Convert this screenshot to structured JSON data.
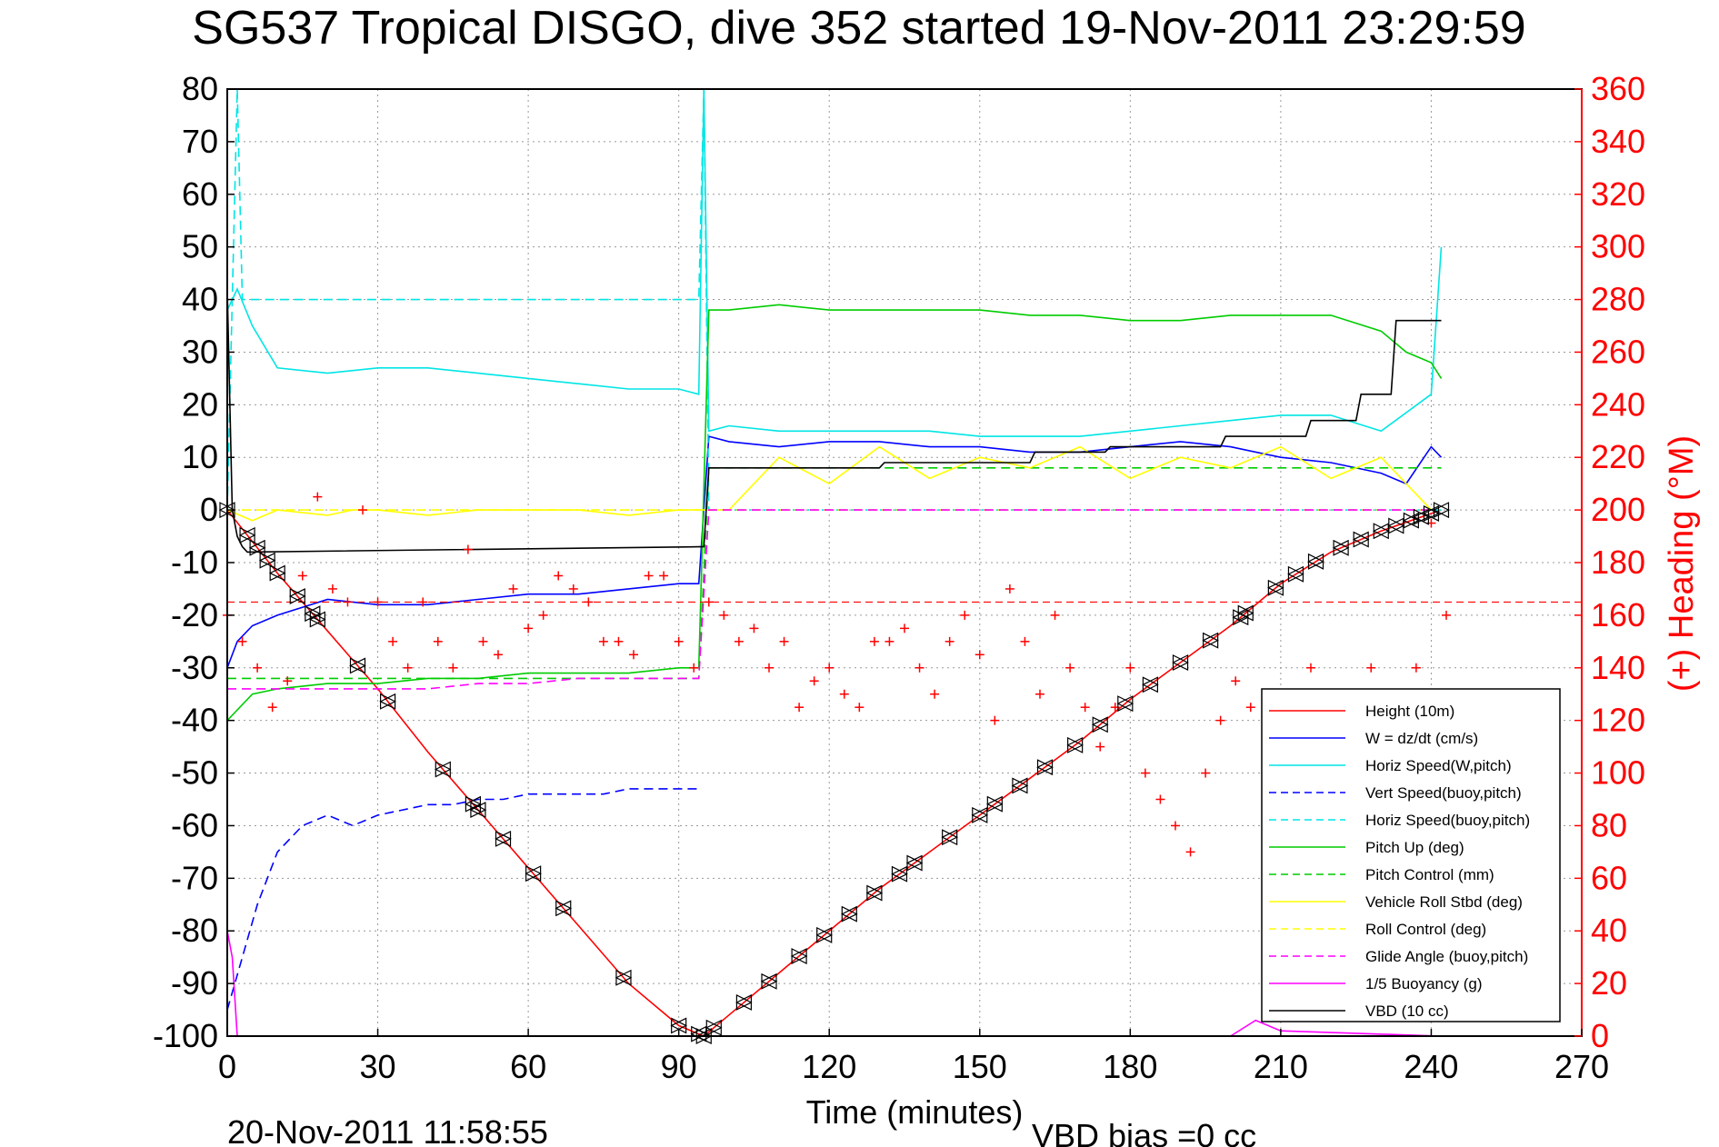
{
  "chart_data": {
    "type": "line",
    "title": "SG537 Tropical DISGO, dive 352 started 19-Nov-2011 23:29:59",
    "xlabel": "Time (minutes)",
    "ylabel_right": "(+) Heading (°M)",
    "footer_date": "20-Nov-2011 11:58:55",
    "footer_note": "VBD bias =0 cc",
    "xlim": [
      0,
      270
    ],
    "ylim": [
      -100,
      80
    ],
    "ylim_right": [
      0,
      360
    ],
    "xticks": [
      0,
      30,
      60,
      90,
      120,
      150,
      180,
      210,
      240,
      270
    ],
    "yticks": [
      80,
      70,
      60,
      50,
      40,
      30,
      20,
      10,
      0,
      -10,
      -20,
      -30,
      -40,
      -50,
      -60,
      -70,
      -80,
      -90,
      -100
    ],
    "yticks_right": [
      360,
      340,
      320,
      300,
      280,
      260,
      240,
      220,
      200,
      180,
      160,
      140,
      120,
      100,
      80,
      60,
      40,
      20,
      0
    ],
    "grid": true,
    "legend_position": "bottom-right",
    "right_axis_color": "#ff0000",
    "series": [
      {
        "name": "Height (10m)",
        "color": "#ff0000",
        "dash": "solid",
        "x": [
          0,
          10,
          20,
          30,
          40,
          50,
          60,
          70,
          80,
          90,
          95,
          100,
          110,
          120,
          130,
          140,
          150,
          160,
          170,
          180,
          190,
          200,
          210,
          220,
          230,
          242
        ],
        "y": [
          0,
          -12,
          -23,
          -34,
          -46,
          -57,
          -68,
          -79,
          -90,
          -98,
          -100,
          -96,
          -88,
          -80,
          -72,
          -65,
          -58,
          -51,
          -44,
          -36,
          -29,
          -22,
          -14,
          -8,
          -4,
          0
        ]
      },
      {
        "name": "W = dz/dt (cm/s)",
        "color": "#0000ff",
        "dash": "solid",
        "x": [
          0,
          2,
          5,
          10,
          20,
          30,
          40,
          50,
          60,
          70,
          80,
          90,
          94,
          96,
          100,
          110,
          120,
          130,
          140,
          150,
          160,
          170,
          180,
          190,
          200,
          210,
          220,
          230,
          235,
          240,
          242
        ],
        "y": [
          -30,
          -25,
          -22,
          -20,
          -17,
          -18,
          -18,
          -17,
          -16,
          -16,
          -15,
          -14,
          -14,
          14,
          13,
          12,
          13,
          13,
          12,
          12,
          11,
          11,
          12,
          13,
          12,
          10,
          9,
          7,
          5,
          12,
          10
        ]
      },
      {
        "name": "Horiz Speed(W,pitch)",
        "color": "#00e5e5",
        "dash": "solid",
        "x": [
          0,
          2,
          5,
          10,
          20,
          30,
          40,
          50,
          60,
          70,
          80,
          90,
          94,
          95,
          96,
          100,
          110,
          120,
          130,
          140,
          150,
          160,
          170,
          180,
          190,
          200,
          210,
          220,
          230,
          240,
          242
        ],
        "y": [
          38,
          42,
          35,
          27,
          26,
          27,
          27,
          26,
          25,
          24,
          23,
          23,
          22,
          80,
          15,
          16,
          15,
          15,
          15,
          15,
          14,
          14,
          14,
          15,
          16,
          17,
          18,
          18,
          15,
          22,
          50
        ]
      },
      {
        "name": "Vert Speed(buoy,pitch)",
        "color": "#0000ff",
        "dash": "dashed",
        "x": [
          0,
          3,
          6,
          10,
          15,
          20,
          25,
          30,
          35,
          40,
          45,
          50,
          55,
          60,
          65,
          70,
          75,
          80,
          85,
          90,
          94
        ],
        "y": [
          -95,
          -85,
          -75,
          -65,
          -60,
          -58,
          -60,
          -58,
          -57,
          -56,
          -56,
          -55,
          -55,
          -54,
          -54,
          -54,
          -54,
          -53,
          -53,
          -53,
          -53
        ]
      },
      {
        "name": "Horiz Speed(buoy,pitch)",
        "color": "#00e5e5",
        "dash": "dashed",
        "x": [
          0,
          2,
          3,
          5,
          94,
          95,
          96,
          242
        ],
        "y": [
          0,
          80,
          40,
          40,
          40,
          80,
          0,
          0
        ]
      },
      {
        "name": "Pitch Up (deg)",
        "color": "#00cc00",
        "dash": "solid",
        "x": [
          0,
          5,
          10,
          20,
          30,
          40,
          50,
          60,
          70,
          80,
          90,
          94,
          96,
          100,
          110,
          120,
          130,
          140,
          150,
          160,
          170,
          180,
          190,
          200,
          210,
          220,
          230,
          235,
          240,
          242
        ],
        "y": [
          -40,
          -35,
          -34,
          -33,
          -33,
          -32,
          -32,
          -31,
          -31,
          -31,
          -30,
          -30,
          38,
          38,
          39,
          38,
          38,
          38,
          38,
          37,
          37,
          36,
          36,
          37,
          37,
          37,
          34,
          30,
          28,
          25
        ]
      },
      {
        "name": "Pitch Control (mm)",
        "color": "#00cc00",
        "dash": "dashed",
        "x": [
          0,
          94,
          96,
          242
        ],
        "y": [
          -32,
          -32,
          8,
          8
        ]
      },
      {
        "name": "Vehicle Roll Stbd (deg)",
        "color": "#ffff00",
        "dash": "solid",
        "x": [
          0,
          5,
          10,
          20,
          25,
          30,
          40,
          50,
          60,
          70,
          80,
          90,
          94,
          96,
          100,
          110,
          120,
          130,
          140,
          150,
          160,
          170,
          180,
          190,
          200,
          210,
          220,
          230,
          240
        ],
        "y": [
          0,
          -2,
          0,
          -1,
          0,
          0,
          -1,
          0,
          0,
          0,
          -1,
          0,
          0,
          0,
          0,
          10,
          5,
          12,
          6,
          10,
          8,
          12,
          6,
          10,
          8,
          12,
          6,
          10,
          0
        ]
      },
      {
        "name": "Roll Control (deg)",
        "color": "#ffff00",
        "dash": "dashed",
        "x": [
          0,
          5,
          10,
          20,
          30,
          40,
          50,
          60,
          70,
          80,
          90,
          94,
          96,
          100,
          110,
          120,
          130,
          140,
          150,
          160,
          170,
          180,
          190,
          200,
          210,
          220,
          230,
          240
        ],
        "y": [
          0,
          0,
          0,
          0,
          0,
          0,
          0,
          0,
          0,
          0,
          0,
          0,
          0,
          0,
          0,
          0,
          0,
          0,
          0,
          0,
          0,
          0,
          0,
          0,
          0,
          0,
          0,
          0
        ]
      },
      {
        "name": "Glide Angle (buoy,pitch)",
        "color": "#ff00ff",
        "dash": "dashed",
        "x": [
          0,
          10,
          20,
          30,
          40,
          50,
          60,
          70,
          80,
          90,
          94,
          96,
          120,
          150,
          180,
          210,
          240
        ],
        "y": [
          -34,
          -34,
          -34,
          -34,
          -34,
          -33,
          -33,
          -32,
          -32,
          -32,
          -32,
          0,
          0,
          0,
          0,
          0,
          0
        ]
      },
      {
        "name": "1/5 Buoyancy (g)",
        "color": "#ff00ff",
        "dash": "solid",
        "x": [
          0,
          1,
          2,
          150,
          200,
          205,
          210,
          242
        ],
        "y": [
          -80,
          -85,
          -100,
          -100,
          -100,
          -97,
          -99,
          -100
        ]
      },
      {
        "name": "VBD (10 cc)",
        "color": "#000000",
        "dash": "solid",
        "x": [
          0,
          1,
          2,
          3,
          4,
          94,
          95,
          96,
          130,
          131,
          160,
          161,
          175,
          176,
          198,
          199,
          215,
          216,
          225,
          226,
          232,
          233,
          242
        ],
        "y": [
          42,
          0,
          -5,
          -7,
          -8,
          -7,
          -7,
          8,
          8,
          9,
          9,
          11,
          11,
          12,
          12,
          14,
          14,
          17,
          17,
          22,
          22,
          36,
          36
        ]
      }
    ],
    "heading_series": {
      "name": "(+) Heading (°M)",
      "color": "#ff0000",
      "marker": "+",
      "axis": "right",
      "x": [
        0,
        3,
        6,
        9,
        12,
        15,
        18,
        21,
        24,
        27,
        30,
        33,
        36,
        39,
        42,
        45,
        48,
        51,
        54,
        57,
        60,
        63,
        66,
        69,
        72,
        75,
        78,
        81,
        84,
        87,
        90,
        93,
        96,
        99,
        102,
        105,
        108,
        111,
        114,
        117,
        120,
        123,
        126,
        129,
        132,
        135,
        138,
        141,
        144,
        147,
        150,
        153,
        156,
        159,
        162,
        165,
        168,
        171,
        174,
        177,
        180,
        183,
        186,
        189,
        192,
        195,
        198,
        201,
        204,
        207,
        210,
        213,
        216,
        219,
        222,
        225,
        228,
        231,
        234,
        237,
        240,
        243
      ],
      "y": [
        160,
        150,
        140,
        125,
        135,
        175,
        205,
        170,
        165,
        200,
        165,
        150,
        140,
        165,
        150,
        140,
        185,
        150,
        145,
        170,
        155,
        160,
        175,
        170,
        165,
        150,
        150,
        145,
        175,
        175,
        150,
        140,
        165,
        160,
        150,
        155,
        140,
        150,
        125,
        135,
        140,
        130,
        125,
        150,
        150,
        155,
        140,
        130,
        150,
        160,
        145,
        120,
        170,
        150,
        130,
        160,
        140,
        125,
        110,
        125,
        140,
        100,
        90,
        80,
        70,
        100,
        120,
        135,
        125,
        100,
        120,
        130,
        140,
        125,
        120,
        130,
        140,
        130,
        120,
        140,
        195,
        160
      ],
      "reference_line": 165
    },
    "depth_markers_x": [
      0,
      4,
      6,
      8,
      10,
      14,
      17,
      18,
      26,
      32,
      43,
      49,
      50,
      55,
      61,
      67,
      79,
      90,
      94,
      95,
      97,
      103,
      108,
      114,
      119,
      124,
      129,
      134,
      137,
      144,
      150,
      153,
      158,
      163,
      169,
      174,
      179,
      184,
      190,
      196,
      202,
      203,
      209,
      213,
      217,
      222,
      226,
      230,
      233,
      236,
      238,
      240,
      242
    ]
  }
}
